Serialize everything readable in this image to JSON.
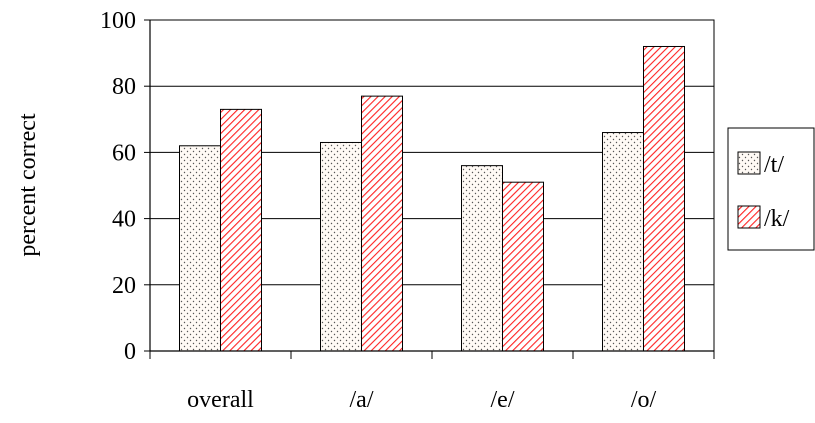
{
  "chart_data": {
    "type": "bar",
    "categories": [
      "overall",
      "/a/",
      "/e/",
      "/o/"
    ],
    "series": [
      {
        "name": "/t/",
        "values": [
          62,
          63,
          56,
          66
        ],
        "color": "#fffaf5",
        "pattern": "dots",
        "pattern_color": "#555555"
      },
      {
        "name": "/k/",
        "values": [
          73,
          77,
          51,
          92
        ],
        "color": "#ffffff",
        "pattern": "diagonal-hatch",
        "pattern_color": "#ff2222"
      }
    ],
    "title": "",
    "xlabel": "",
    "ylabel": "percent correct",
    "ylim": [
      0,
      100
    ],
    "yticks": [
      0,
      20,
      40,
      60,
      80,
      100
    ],
    "grid": true,
    "legend_position": "right"
  }
}
